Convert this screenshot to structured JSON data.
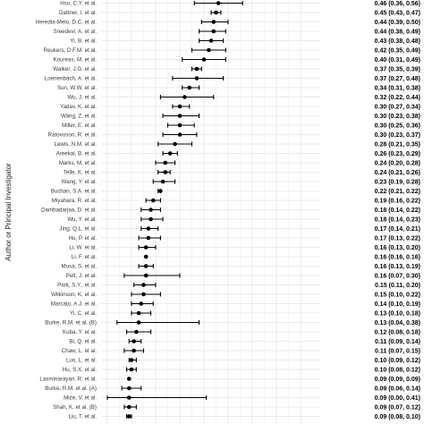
{
  "chart_data": {
    "type": "forest",
    "ylabel": "Author or Principal Investigator",
    "xlim": [
      0,
      0.6
    ],
    "grid": true,
    "colors": {
      "point": "#000000",
      "grid": "#ebebeb",
      "panel": "#ffffff"
    },
    "rows": [
      {
        "label": "Hsu, C.Y. et al.",
        "est": 0.46,
        "lo": 0.36,
        "hi": 0.56,
        "text": "0.46 (0.36, 0.56)"
      },
      {
        "label": "Dattner, I. et al.",
        "est": 0.45,
        "lo": 0.43,
        "hi": 0.47,
        "text": "0.45 (0.43, 0.47)"
      },
      {
        "label": "Heredia-Melo, D.C. et al.",
        "est": 0.44,
        "lo": 0.39,
        "hi": 0.5,
        "text": "0.44 (0.39, 0.50)"
      },
      {
        "label": "Sreedevi, A. et al.",
        "est": 0.44,
        "lo": 0.38,
        "hi": 0.49,
        "text": "0.44 (0.38, 0.49)"
      },
      {
        "label": "Yi, B. et al.",
        "est": 0.43,
        "lo": 0.38,
        "hi": 0.48,
        "text": "0.43 (0.38, 0.48)"
      },
      {
        "label": "Reukers, D.F.M. et al.",
        "est": 0.42,
        "lo": 0.35,
        "hi": 0.49,
        "text": "0.42 (0.35, 0.49)"
      },
      {
        "label": "Koureas, M. et al.",
        "est": 0.4,
        "lo": 0.31,
        "hi": 0.49,
        "text": "0.40 (0.31, 0.49)"
      },
      {
        "label": "Walker, J.G. et al.",
        "est": 0.37,
        "lo": 0.35,
        "hi": 0.39,
        "text": "0.37 (0.35, 0.39)"
      },
      {
        "label": "Loenenbach, A. et al.",
        "est": 0.37,
        "lo": 0.27,
        "hi": 0.48,
        "text": "0.37 (0.27, 0.48)"
      },
      {
        "label": "Sun, W.W. et al.",
        "est": 0.34,
        "lo": 0.31,
        "hi": 0.38,
        "text": "0.34 (0.31, 0.38)"
      },
      {
        "label": "Wu, J. et al.",
        "est": 0.32,
        "lo": 0.22,
        "hi": 0.44,
        "text": "0.32 (0.22, 0.44)"
      },
      {
        "label": "Yadav, K. et al.",
        "est": 0.3,
        "lo": 0.27,
        "hi": 0.34,
        "text": "0.30 (0.27, 0.34)"
      },
      {
        "label": "Wang, Z. et al.",
        "est": 0.3,
        "lo": 0.23,
        "hi": 0.38,
        "text": "0.30 (0.23, 0.38)"
      },
      {
        "label": "Miller, E. et al.",
        "est": 0.3,
        "lo": 0.25,
        "hi": 0.36,
        "text": "0.30 (0.25, 0.36)"
      },
      {
        "label": "Ratovoson, R. et al.",
        "est": 0.3,
        "lo": 0.23,
        "hi": 0.37,
        "text": "0.30 (0.23, 0.37)"
      },
      {
        "label": "Lewis, N.M. et al.",
        "est": 0.28,
        "lo": 0.21,
        "hi": 0.35,
        "text": "0.28 (0.21, 0.35)"
      },
      {
        "label": "Areekal, B. et al.",
        "est": 0.26,
        "lo": 0.23,
        "hi": 0.29,
        "text": "0.26 (0.23, 0.29)"
      },
      {
        "label": "Marks, M. et al.",
        "est": 0.24,
        "lo": 0.2,
        "hi": 0.28,
        "text": "0.24 (0.20, 0.28)"
      },
      {
        "label": "Telle, K. et al.",
        "est": 0.24,
        "lo": 0.21,
        "hi": 0.26,
        "text": "0.24 (0.21, 0.26)"
      },
      {
        "label": "Wang, Y. et al.",
        "est": 0.23,
        "lo": 0.19,
        "hi": 0.28,
        "text": "0.23 (0.19, 0.28)"
      },
      {
        "label": "Buchan, S.A. et al.",
        "est": 0.22,
        "lo": 0.21,
        "hi": 0.22,
        "text": "0.22 (0.21, 0.22)"
      },
      {
        "label": "Miyahara, R. et al.",
        "est": 0.19,
        "lo": 0.16,
        "hi": 0.22,
        "text": "0.19 (0.16, 0.22)"
      },
      {
        "label": "Dambadarjaa, D. et al.",
        "est": 0.18,
        "lo": 0.14,
        "hi": 0.22,
        "text": "0.18 (0.14, 0.22)"
      },
      {
        "label": "Wu, Y. et al.",
        "est": 0.18,
        "lo": 0.14,
        "hi": 0.23,
        "text": "0.18 (0.14, 0.23)"
      },
      {
        "label": "Jing, Q.L. et al.",
        "est": 0.17,
        "lo": 0.14,
        "hi": 0.21,
        "text": "0.17 (0.14, 0.21)"
      },
      {
        "label": "Hu, P. et al.",
        "est": 0.17,
        "lo": 0.13,
        "hi": 0.22,
        "text": "0.17 (0.13, 0.22)"
      },
      {
        "label": "Li, W. et al.",
        "est": 0.16,
        "lo": 0.13,
        "hi": 0.2,
        "text": "0.16 (0.13, 0.20)"
      },
      {
        "label": "Li, F. et al.",
        "est": 0.16,
        "lo": 0.16,
        "hi": 0.16,
        "text": "0.16 (0.16, 0.16)"
      },
      {
        "label": "Musa, S. et al.",
        "est": 0.16,
        "lo": 0.13,
        "hi": 0.19,
        "text": "0.16 (0.13, 0.19)"
      },
      {
        "label": "Pett, J. et al.",
        "est": 0.16,
        "lo": 0.07,
        "hi": 0.3,
        "text": "0.16 (0.07, 0.30)"
      },
      {
        "label": "Park, S.Y., et al.",
        "est": 0.15,
        "lo": 0.11,
        "hi": 0.2,
        "text": "0.15 (0.11, 0.20)"
      },
      {
        "label": "Wilkinson, K. et al.",
        "est": 0.15,
        "lo": 0.1,
        "hi": 0.22,
        "text": "0.15 (0.10, 0.22)"
      },
      {
        "label": "Marcato, A.J. et al.",
        "est": 0.14,
        "lo": 0.1,
        "hi": 0.19,
        "text": "0.14 (0.10, 0.19)"
      },
      {
        "label": "Yi, C. et al.",
        "est": 0.13,
        "lo": 0.1,
        "hi": 0.18,
        "text": "0.13 (0.10, 0.18)"
      },
      {
        "label": "Burke, R.M. et al. (B)",
        "est": 0.13,
        "lo": 0.04,
        "hi": 0.38,
        "text": "0.13 (0.04, 0.38)"
      },
      {
        "label": "Kuba, Y. et al.",
        "est": 0.12,
        "lo": 0.08,
        "hi": 0.18,
        "text": "0.12 (0.08, 0.18)"
      },
      {
        "label": "Bi, Q. et al.",
        "est": 0.11,
        "lo": 0.09,
        "hi": 0.14,
        "text": "0.11 (0.09, 0.14)"
      },
      {
        "label": "Chaw, L. et al.",
        "est": 0.11,
        "lo": 0.07,
        "hi": 0.15,
        "text": "0.11 (0.07, 0.15)"
      },
      {
        "label": "Luo, L. et al.",
        "est": 0.1,
        "lo": 0.09,
        "hi": 0.12,
        "text": "0.10 (0.09, 0.12)"
      },
      {
        "label": "Hu, S.X. et al.",
        "est": 0.1,
        "lo": 0.08,
        "hi": 0.12,
        "text": "0.10 (0.08, 0.12)"
      },
      {
        "label": "Laxminarayan, R. et al.",
        "est": 0.09,
        "lo": 0.09,
        "hi": 0.09,
        "text": "0.09 (0.09, 0.09)"
      },
      {
        "label": "Burke, R.M. et al. (A)",
        "est": 0.09,
        "lo": 0.06,
        "hi": 0.14,
        "text": "0.09 (0.06, 0.14)"
      },
      {
        "label": "Mize, V. et al.",
        "est": 0.09,
        "lo": 0.0,
        "hi": 0.41,
        "text": "0.09 (0.00, 0.41)"
      },
      {
        "label": "Shah, K. et al. (B)",
        "est": 0.09,
        "lo": 0.07,
        "hi": 0.12,
        "text": "0.09 (0.07, 0.12)"
      },
      {
        "label": "Liu, T. et al.",
        "est": 0.09,
        "lo": 0.08,
        "hi": 0.1,
        "text": "0.09 (0.08, 0.10)"
      }
    ]
  }
}
